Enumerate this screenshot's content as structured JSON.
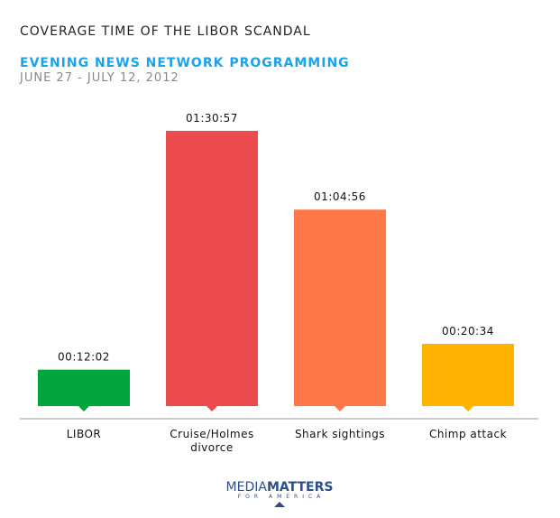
{
  "chart_data": {
    "type": "bar",
    "title": "COVERAGE TIME OF THE LIBOR SCANDAL",
    "subtitle": "EVENING NEWS NETWORK PROGRAMMING",
    "date_range": "JUNE 27 - JULY 12, 2012",
    "categories": [
      [
        "LIBOR"
      ],
      [
        "Cruise/Holmes",
        "divorce"
      ],
      [
        "Shark sightings"
      ],
      [
        "Chimp attack"
      ]
    ],
    "values_minutes": [
      12.033,
      90.95,
      64.933,
      20.567
    ],
    "data_labels": [
      "00:12:02",
      "01:30:57",
      "01:04:56",
      "00:20:34"
    ],
    "colors": [
      "#00a53c",
      "#ec4b4e",
      "#ff784a",
      "#ffb300"
    ],
    "xlabel": "",
    "ylabel": "",
    "grid": false
  },
  "footer": {
    "logo_word1": "MEDIA",
    "logo_word2": "MATTERS",
    "logo_line2": "FOR AMERICA"
  }
}
